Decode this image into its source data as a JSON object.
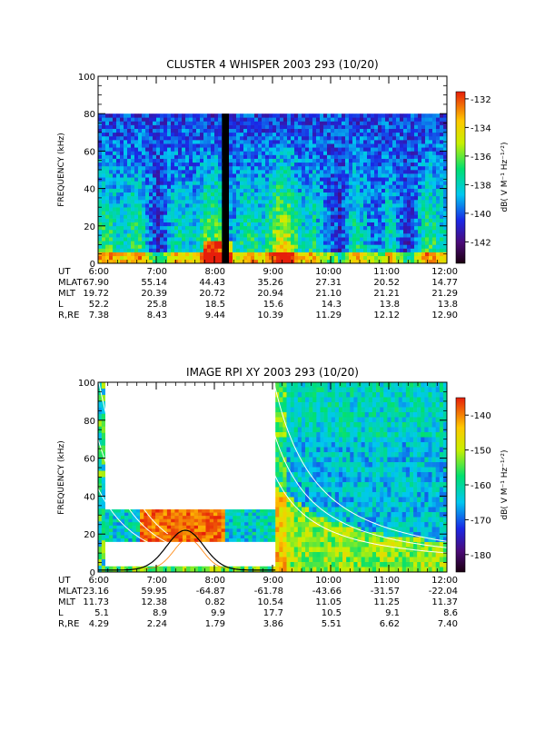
{
  "chart_data": [
    {
      "type": "heatmap",
      "title": "CLUSTER 4 WHISPER 2003 293 (10/20)",
      "ylabel": "FREQUENCY (kHz)",
      "ylim": [
        0,
        100
      ],
      "yticks": [
        "0",
        "20",
        "40",
        "60",
        "80",
        "100"
      ],
      "colorbar": {
        "label": "dB( V M⁻¹ Hz⁻¹ᐟ²)",
        "range": [
          -143.5,
          -131.5
        ],
        "ticks": [
          "-132",
          "-134",
          "-136",
          "-138",
          "-140",
          "-142"
        ],
        "tick_values": [
          -132,
          -134,
          -136,
          -138,
          -140,
          -142
        ]
      },
      "data_max_frequency": 80,
      "data_gaps": [
        [
          8.13,
          8.25
        ]
      ],
      "ephemeris": {
        "labels": [
          "UT",
          "MLAT",
          "MLT",
          "L",
          "R,RE"
        ],
        "ut": [
          "6:00",
          "7:00",
          "8:00",
          "9:00",
          "10:00",
          "11:00",
          "12:00"
        ],
        "rows": [
          [
            "67.90",
            "55.14",
            "44.43",
            "35.26",
            "27.31",
            "20.52",
            "14.77"
          ],
          [
            "19.72",
            "20.39",
            "20.72",
            "20.94",
            "21.10",
            "21.21",
            "21.29"
          ],
          [
            "52.2",
            "25.8",
            "18.5",
            "15.6",
            "14.3",
            "13.8",
            "13.8"
          ],
          [
            "7.38",
            "8.43",
            "9.44",
            "10.39",
            "11.29",
            "12.12",
            "12.90"
          ]
        ]
      }
    },
    {
      "type": "heatmap",
      "title": "IMAGE RPI XY 2003 293 (10/20)",
      "ylabel": "FREQUENCY (kHz)",
      "ylim": [
        0,
        100
      ],
      "yticks": [
        "0",
        "20",
        "40",
        "60",
        "80",
        "100"
      ],
      "colorbar": {
        "label": "dB( V M⁻¹ Hz⁻¹ᐟ²)",
        "range": [
          -185,
          -135
        ],
        "ticks": [
          "-140",
          "-150",
          "-160",
          "-170",
          "-180"
        ],
        "tick_values": [
          -140,
          -150,
          -160,
          -170,
          -180
        ]
      },
      "ephemeris": {
        "labels": [
          "UT",
          "MLAT",
          "MLT",
          "L",
          "R,RE"
        ],
        "ut": [
          "6:00",
          "7:00",
          "8:00",
          "9:00",
          "10:00",
          "11:00",
          "12:00"
        ],
        "rows": [
          [
            "23.16",
            "59.95",
            "-64.87",
            "-61.78",
            "-43.66",
            "-31.57",
            "-22.04"
          ],
          [
            "11.73",
            "12.38",
            "0.82",
            "10.54",
            "11.05",
            "11.25",
            "11.37"
          ],
          [
            "5.1",
            "8.9",
            "9.9",
            "17.7",
            "10.5",
            "9.1",
            "8.6"
          ],
          [
            "4.29",
            "2.24",
            "1.79",
            "3.86",
            "5.51",
            "6.62",
            "7.40"
          ]
        ]
      }
    }
  ],
  "colors": {
    "axis": "#000000",
    "background": "#ffffff",
    "overlay_lines": "#ffffff",
    "electron_curve": "#000000"
  }
}
